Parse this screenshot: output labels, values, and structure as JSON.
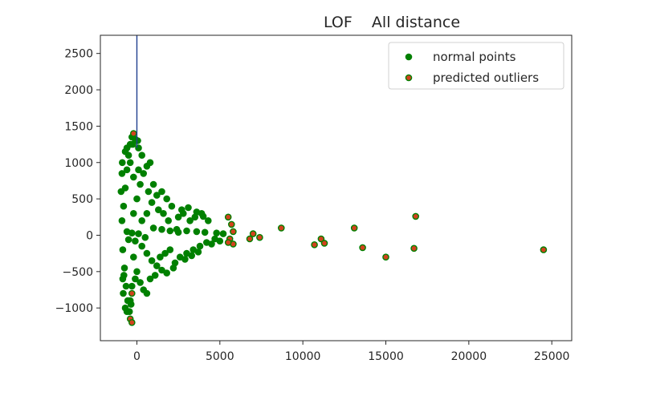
{
  "chart_data": {
    "type": "scatter",
    "title": "LOF    All distance",
    "xlabel": "",
    "ylabel": "",
    "xlim": [
      -2200,
      26200
    ],
    "ylim": [
      -1450,
      2750
    ],
    "x_ticks": [
      0,
      5000,
      10000,
      15000,
      20000,
      25000
    ],
    "y_ticks": [
      -1000,
      -500,
      0,
      500,
      1000,
      1500,
      2000,
      2500
    ],
    "x_tick_labels": [
      "0",
      "5000",
      "10000",
      "15000",
      "20000",
      "25000"
    ],
    "y_tick_labels": [
      "−1000",
      "−500",
      "0",
      "500",
      "1000",
      "1500",
      "2000",
      "2500"
    ],
    "grid": false,
    "legend_position": "top-right",
    "vertical_line": {
      "x": 0,
      "color": "#1f3f8f"
    },
    "series": [
      {
        "name": "normal points",
        "color": "#008000",
        "edge_color": "#008000",
        "points": [
          [
            -900,
            200
          ],
          [
            -800,
            400
          ],
          [
            -700,
            650
          ],
          [
            -600,
            900
          ],
          [
            -500,
            1100
          ],
          [
            -400,
            1250
          ],
          [
            -300,
            1350
          ],
          [
            -850,
            -200
          ],
          [
            -750,
            -450
          ],
          [
            -650,
            -700
          ],
          [
            -550,
            -900
          ],
          [
            -450,
            -1050
          ],
          [
            -350,
            -950
          ],
          [
            -200,
            300
          ],
          [
            0,
            500
          ],
          [
            200,
            700
          ],
          [
            400,
            850
          ],
          [
            600,
            950
          ],
          [
            800,
            1000
          ],
          [
            -200,
            -300
          ],
          [
            0,
            -500
          ],
          [
            200,
            -650
          ],
          [
            400,
            -750
          ],
          [
            600,
            -800
          ],
          [
            300,
            200
          ],
          [
            600,
            300
          ],
          [
            900,
            450
          ],
          [
            1200,
            550
          ],
          [
            1500,
            600
          ],
          [
            1800,
            500
          ],
          [
            2100,
            400
          ],
          [
            300,
            -150
          ],
          [
            600,
            -250
          ],
          [
            900,
            -350
          ],
          [
            1200,
            -420
          ],
          [
            1500,
            -480
          ],
          [
            1800,
            -520
          ],
          [
            2200,
            -450
          ],
          [
            2500,
            250
          ],
          [
            2800,
            300
          ],
          [
            3200,
            200
          ],
          [
            3500,
            250
          ],
          [
            3900,
            300
          ],
          [
            4300,
            200
          ],
          [
            2600,
            -300
          ],
          [
            3000,
            -250
          ],
          [
            3400,
            -200
          ],
          [
            3800,
            -150
          ],
          [
            4200,
            -100
          ],
          [
            4700,
            -50
          ],
          [
            2400,
            80
          ],
          [
            3000,
            60
          ],
          [
            3600,
            50
          ],
          [
            4100,
            40
          ],
          [
            4800,
            30
          ],
          [
            5200,
            20
          ],
          [
            1000,
            100
          ],
          [
            1500,
            80
          ],
          [
            2000,
            60
          ],
          [
            2500,
            40
          ],
          [
            -600,
            50
          ],
          [
            -300,
            30
          ],
          [
            100,
            20
          ],
          [
            500,
            -30
          ],
          [
            -500,
            -60
          ],
          [
            -100,
            -80
          ],
          [
            -950,
            600
          ],
          [
            -900,
            850
          ],
          [
            -880,
            1000
          ],
          [
            -850,
            -600
          ],
          [
            -820,
            -800
          ],
          [
            -780,
            -550
          ],
          [
            100,
            1200
          ],
          [
            300,
            1100
          ],
          [
            50,
            1300
          ],
          [
            -100,
            1320
          ],
          [
            -250,
            1250
          ],
          [
            700,
            600
          ],
          [
            1000,
            700
          ],
          [
            1300,
            350
          ],
          [
            1600,
            300
          ],
          [
            1900,
            200
          ],
          [
            800,
            -600
          ],
          [
            1100,
            -550
          ],
          [
            1400,
            -300
          ],
          [
            1700,
            -250
          ],
          [
            2000,
            -200
          ],
          [
            2700,
            350
          ],
          [
            3100,
            380
          ],
          [
            3600,
            320
          ],
          [
            4000,
            260
          ],
          [
            2300,
            -380
          ],
          [
            2900,
            -330
          ],
          [
            3300,
            -280
          ],
          [
            3700,
            -230
          ],
          [
            4500,
            -120
          ],
          [
            5000,
            -80
          ],
          [
            -700,
            -1000
          ],
          [
            -600,
            -1050
          ],
          [
            -400,
            -900
          ],
          [
            -300,
            -700
          ],
          [
            -100,
            -600
          ],
          [
            -700,
            1150
          ],
          [
            -600,
            1200
          ],
          [
            -400,
            1000
          ],
          [
            -200,
            800
          ],
          [
            100,
            900
          ]
        ]
      },
      {
        "name": "predicted outliers",
        "color": "#d2421e",
        "edge_color": "#008000",
        "points": [
          [
            -200,
            1400
          ],
          [
            -300,
            -800
          ],
          [
            -400,
            -1150
          ],
          [
            -300,
            -1200
          ],
          [
            5500,
            250
          ],
          [
            5700,
            150
          ],
          [
            5800,
            50
          ],
          [
            5600,
            -50
          ],
          [
            5800,
            -120
          ],
          [
            5500,
            -100
          ],
          [
            6800,
            -50
          ],
          [
            7000,
            20
          ],
          [
            7400,
            -30
          ],
          [
            8700,
            100
          ],
          [
            10700,
            -130
          ],
          [
            11100,
            -50
          ],
          [
            11300,
            -110
          ],
          [
            13100,
            100
          ],
          [
            13600,
            -170
          ],
          [
            15000,
            -300
          ],
          [
            16700,
            -180
          ],
          [
            16800,
            260
          ],
          [
            24500,
            -200
          ]
        ]
      }
    ]
  }
}
